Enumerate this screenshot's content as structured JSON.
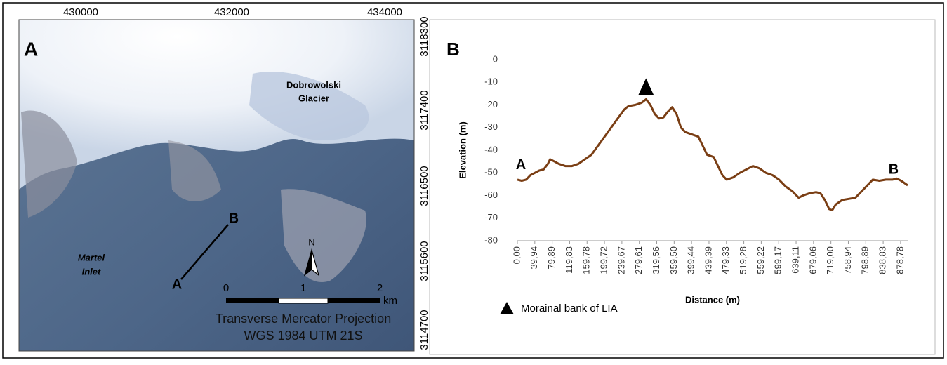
{
  "map_panel": {
    "panel_label": "A",
    "xticks": [
      430000,
      432000,
      434000
    ],
    "yticks": [
      3118300,
      3117400,
      3116500,
      3115600,
      3114700
    ],
    "glacier_label": [
      "Dobrowolski",
      "Glacier"
    ],
    "inlet_label": [
      "Martel",
      "Inlet"
    ],
    "profile_start": "A",
    "profile_end": "B",
    "north": "N",
    "scale_labels": [
      "0",
      "1",
      "2"
    ],
    "scale_unit": "km",
    "projection": [
      "Transverse Mercator Projection",
      "WGS 1984 UTM 21S"
    ]
  },
  "chart_data": {
    "type": "line",
    "panel_label": "B",
    "x_label": "Distance (m)",
    "y_label": "Elevation  (m)",
    "x": [
      0,
      10,
      20,
      30,
      40,
      50,
      60,
      70,
      75,
      85,
      95,
      110,
      125,
      140,
      155,
      170,
      185,
      200,
      215,
      230,
      245,
      255,
      270,
      285,
      295,
      305,
      315,
      325,
      335,
      345,
      355,
      365,
      375,
      385,
      400,
      415,
      425,
      435,
      450,
      460,
      470,
      480,
      495,
      510,
      525,
      540,
      555,
      570,
      585,
      600,
      615,
      630,
      645,
      655,
      670,
      685,
      695,
      705,
      715,
      722,
      730,
      745,
      760,
      775,
      790,
      805,
      815,
      830,
      845,
      860,
      870,
      880,
      895
    ],
    "values": [
      -53,
      -53.5,
      -53,
      -51,
      -50,
      -49,
      -48.5,
      -46,
      -44,
      -45,
      -46,
      -47,
      -47,
      -46,
      -44,
      -42,
      -38,
      -34,
      -30,
      -26,
      -22,
      -20.5,
      -20,
      -19,
      -17.5,
      -20,
      -24,
      -26,
      -25.5,
      -23,
      -21,
      -24,
      -30,
      -32,
      -33,
      -34,
      -38,
      -42,
      -43,
      -47,
      -51,
      -53,
      -52,
      -50,
      -48.5,
      -47,
      -48,
      -50,
      -51,
      -53,
      -56,
      -58,
      -61,
      -60,
      -59,
      -58.5,
      -59,
      -62,
      -66,
      -66.5,
      -64,
      -62,
      -61.5,
      -61,
      -58,
      -55,
      -53,
      -53.5,
      -53,
      -53,
      -52.5,
      -53.5,
      -55.5
    ],
    "color": "#7a3e14",
    "xlim": [
      0,
      895
    ],
    "xticks": [
      {
        "value": 0,
        "label": "0,00"
      },
      {
        "value": 39.94,
        "label": "39,94"
      },
      {
        "value": 79.89,
        "label": "79,89"
      },
      {
        "value": 119.83,
        "label": "119,83"
      },
      {
        "value": 159.78,
        "label": "159,78"
      },
      {
        "value": 199.72,
        "label": "199,72"
      },
      {
        "value": 239.67,
        "label": "239,67"
      },
      {
        "value": 279.61,
        "label": "279,61"
      },
      {
        "value": 319.56,
        "label": "319,56"
      },
      {
        "value": 359.5,
        "label": "359,50"
      },
      {
        "value": 399.44,
        "label": "399,44"
      },
      {
        "value": 439.39,
        "label": "439,39"
      },
      {
        "value": 479.33,
        "label": "479,33"
      },
      {
        "value": 519.28,
        "label": "519,28"
      },
      {
        "value": 559.22,
        "label": "559,22"
      },
      {
        "value": 599.17,
        "label": "599,17"
      },
      {
        "value": 639.11,
        "label": "639,11"
      },
      {
        "value": 679.06,
        "label": "679,06"
      },
      {
        "value": 719,
        "label": "719,00"
      },
      {
        "value": 758.94,
        "label": "758,94"
      },
      {
        "value": 798.89,
        "label": "798,89"
      },
      {
        "value": 838.83,
        "label": "838,83"
      },
      {
        "value": 878.78,
        "label": "878,78"
      }
    ],
    "ylim": [
      -80,
      0
    ],
    "yticks": [
      0,
      -10,
      -20,
      -30,
      -40,
      -50,
      -60,
      -70,
      -80
    ],
    "grid": false,
    "endpoint_labels": [
      "A",
      "B"
    ],
    "marker_legend": "Morainal bank of LIA"
  }
}
